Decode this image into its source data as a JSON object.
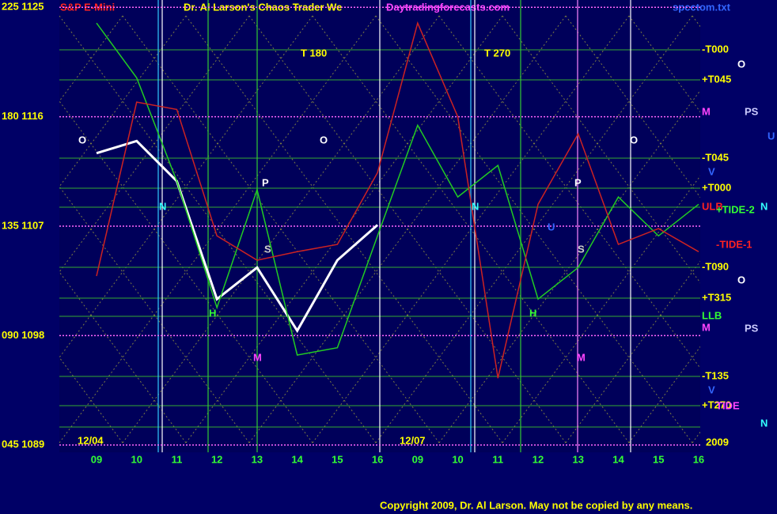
{
  "chart_data": {
    "type": "line",
    "symbol": "S&P E-Mini",
    "title": "Dr. Al Larson's Chaos Trader We",
    "site": "Daytradingforecasts.com",
    "file": "spcctom.txt",
    "copyright": "Copyright 2009, Dr. Al Larson. May not be copied by any means.",
    "categories": [
      "09",
      "10",
      "11",
      "12",
      "13",
      "14",
      "15",
      "16",
      "09",
      "10",
      "11",
      "12",
      "13",
      "14",
      "15",
      "16"
    ],
    "date_labels": [
      "12/04",
      "12/07",
      "2009"
    ],
    "series": [
      {
        "color": "#ffffff",
        "values": [
          1113,
          1114,
          1110.7,
          1101,
          1103.6,
          1098.4,
          1104.2,
          1107.1,
          null,
          null,
          null,
          null,
          null,
          null,
          null,
          null
        ]
      },
      {
        "color": "#22cc22",
        "values": [
          1123.7,
          1119.2,
          1110.7,
          1100.3,
          1110,
          1096.4,
          1097,
          1106.2,
          1115.3,
          1109.4,
          1112,
          1101,
          1103.6,
          1109.4,
          1106.2,
          1108.8
        ]
      },
      {
        "color": "#cc2222",
        "values": [
          1102.9,
          1117.2,
          1116.6,
          1106.2,
          1104.2,
          1104.9,
          1105.5,
          1111.4,
          1123.7,
          1116,
          1094.5,
          1108.8,
          1114.6,
          1105.5,
          1106.8,
          1104.9
        ]
      }
    ],
    "ylim": [
      1088.4,
      1125.6
    ],
    "yticks": [
      {
        "value": 1125,
        "label": "225 1125"
      },
      {
        "value": 1116,
        "label": "180 1116"
      },
      {
        "value": 1107,
        "label": "135 1107"
      },
      {
        "value": 1098,
        "label": "090 1098"
      },
      {
        "value": 1089,
        "label": "045 1089"
      }
    ],
    "grid": true,
    "annotations": [
      "T 180",
      "T 270",
      "-T000",
      "+T045",
      "M",
      "-T045",
      "+T000",
      "ULB",
      "+TIDE-2",
      "-TIDE-1",
      "-T090",
      "+T315",
      "LLB",
      "M",
      "-T135",
      "+T270",
      "TIDE",
      "O",
      "O",
      "O",
      "O",
      "O",
      "P",
      "P",
      "PS",
      "PS",
      "S",
      "S",
      "N",
      "N",
      "N",
      "N",
      "M",
      "M",
      "H",
      "H",
      "U",
      "U",
      "V",
      "V"
    ]
  }
}
